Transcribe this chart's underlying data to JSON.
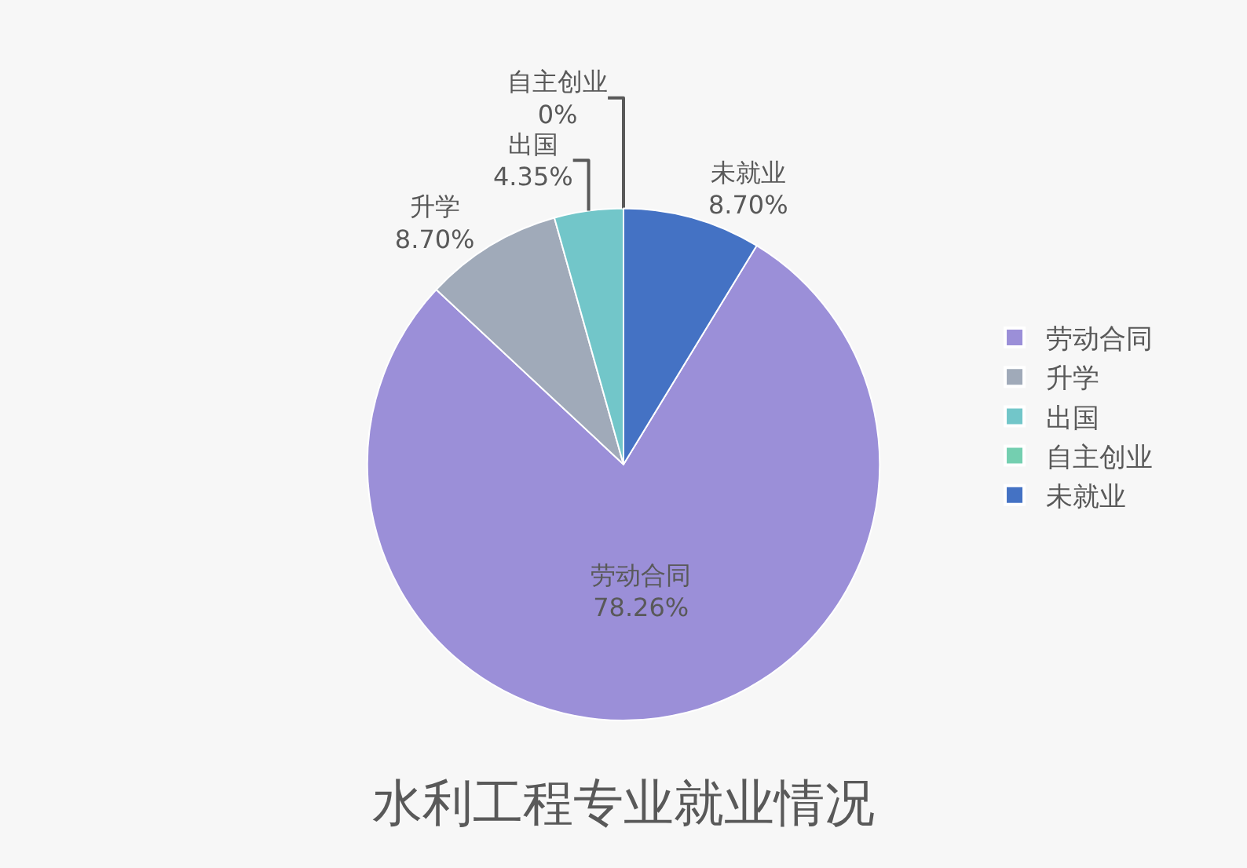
{
  "chart_data": {
    "type": "pie",
    "title": "水利工程专业就业情况",
    "categories": [
      "劳动合同",
      "升学",
      "出国",
      "自主创业",
      "未就业"
    ],
    "values": [
      78.26,
      8.7,
      4.35,
      0,
      8.7
    ],
    "value_labels": [
      "78.26%",
      "8.70%",
      "4.35%",
      "0%",
      "8.70%"
    ],
    "colors": [
      "#9b8fd8",
      "#a0aab9",
      "#72c6c9",
      "#74cfb0",
      "#4472c4"
    ],
    "legend": "right"
  }
}
